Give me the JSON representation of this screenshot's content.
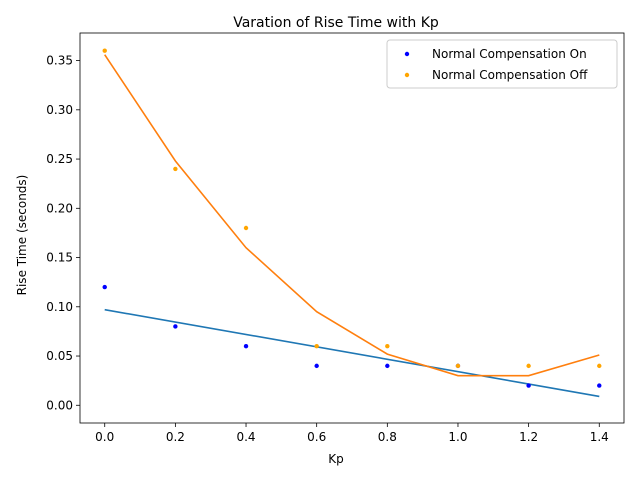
{
  "chart_data": {
    "type": "scatter",
    "title": "Varation of Rise Time with Kp",
    "xlabel": "Kp",
    "ylabel": "Rise Time (seconds)",
    "xlim": [
      -0.07,
      1.47
    ],
    "ylim": [
      -0.018,
      0.378
    ],
    "xticks": [
      0.0,
      0.2,
      0.4,
      0.6,
      0.8,
      1.0,
      1.2,
      1.4
    ],
    "xtick_labels": [
      "0.0",
      "0.2",
      "0.4",
      "0.6",
      "0.8",
      "1.0",
      "1.2",
      "1.4"
    ],
    "yticks": [
      0.0,
      0.05,
      0.1,
      0.15,
      0.2,
      0.25,
      0.3,
      0.35
    ],
    "ytick_labels": [
      "0.00",
      "0.05",
      "0.10",
      "0.15",
      "0.20",
      "0.25",
      "0.30",
      "0.35"
    ],
    "grid": false,
    "legend_position": "top-right",
    "x": [
      0.0,
      0.2,
      0.4,
      0.6,
      0.8,
      1.0,
      1.2,
      1.4
    ],
    "series": [
      {
        "name": "Normal Compensation On",
        "kind": "scatter",
        "color": "#0000ff",
        "values": [
          0.12,
          0.08,
          0.06,
          0.04,
          0.04,
          0.04,
          0.02,
          0.02
        ]
      },
      {
        "name": "Normal Compensation Off",
        "kind": "scatter",
        "color": "#ffa500",
        "values": [
          0.36,
          0.24,
          0.18,
          0.06,
          0.06,
          0.04,
          0.04,
          0.04
        ]
      }
    ],
    "fit_lines": [
      {
        "kind": "line",
        "color": "#1f77b4",
        "x": [
          0.0,
          1.4
        ],
        "values": [
          0.097,
          0.009
        ]
      },
      {
        "kind": "line",
        "color": "#ff7f0e",
        "x": [
          0.0,
          0.2,
          0.4,
          0.6,
          0.8,
          1.0,
          1.2,
          1.4
        ],
        "values": [
          0.356,
          0.248,
          0.16,
          0.095,
          0.052,
          0.03,
          0.03,
          0.051
        ]
      }
    ]
  }
}
